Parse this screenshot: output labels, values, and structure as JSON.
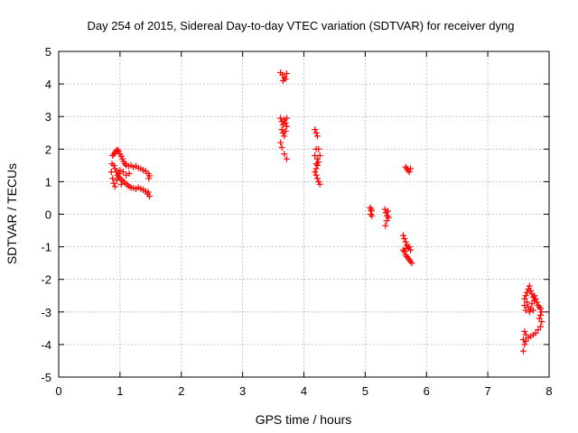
{
  "chart_data": {
    "type": "scatter",
    "title": "Day 254 of 2015, Sidereal Day-to-day VTEC variation (SDTVAR) for receiver dyng",
    "xlabel": "GPS time / hours",
    "ylabel": "SDTVAR / TECUs",
    "xlim": [
      0,
      8
    ],
    "ylim": [
      -5,
      5
    ],
    "xticks": [
      0,
      1,
      2,
      3,
      4,
      5,
      6,
      7,
      8
    ],
    "xtick_labels": [
      "0",
      "1",
      "2",
      "3",
      "4",
      "5",
      "6",
      "7",
      "8"
    ],
    "yticks": [
      -5,
      -4,
      -3,
      -2,
      -1,
      0,
      1,
      2,
      3,
      4,
      5
    ],
    "ytick_labels": [
      "-5",
      "-4",
      "-3",
      "-2",
      "-1",
      "0",
      "1",
      "2",
      "3",
      "4",
      "5"
    ],
    "grid": true,
    "marker": "+",
    "color": "#ff0000",
    "points": [
      [
        0.88,
        1.8
      ],
      [
        0.9,
        1.85
      ],
      [
        0.92,
        1.9
      ],
      [
        0.94,
        1.95
      ],
      [
        0.96,
        1.98
      ],
      [
        0.98,
        1.93
      ],
      [
        1.0,
        1.85
      ],
      [
        1.02,
        1.78
      ],
      [
        1.04,
        1.7
      ],
      [
        1.06,
        1.62
      ],
      [
        1.08,
        1.55
      ],
      [
        1.1,
        1.5
      ],
      [
        1.14,
        1.48
      ],
      [
        1.18,
        1.5
      ],
      [
        1.22,
        1.45
      ],
      [
        1.26,
        1.48
      ],
      [
        1.3,
        1.42
      ],
      [
        1.34,
        1.4
      ],
      [
        1.38,
        1.35
      ],
      [
        1.42,
        1.32
      ],
      [
        1.46,
        1.25
      ],
      [
        1.48,
        1.18
      ],
      [
        1.47,
        1.1
      ],
      [
        0.9,
        1.5
      ],
      [
        0.92,
        1.4
      ],
      [
        0.94,
        1.3
      ],
      [
        0.96,
        1.2
      ],
      [
        0.98,
        1.15
      ],
      [
        1.0,
        1.1
      ],
      [
        1.03,
        1.05
      ],
      [
        1.06,
        1.0
      ],
      [
        1.09,
        0.95
      ],
      [
        1.12,
        0.9
      ],
      [
        1.15,
        0.85
      ],
      [
        1.18,
        0.82
      ],
      [
        1.22,
        0.8
      ],
      [
        1.26,
        0.78
      ],
      [
        1.3,
        0.82
      ],
      [
        1.34,
        0.78
      ],
      [
        1.38,
        0.75
      ],
      [
        1.42,
        0.7
      ],
      [
        1.45,
        0.62
      ],
      [
        1.48,
        0.55
      ],
      [
        1.46,
        0.68
      ],
      [
        0.86,
        1.3
      ],
      [
        0.88,
        1.1
      ],
      [
        0.9,
        0.95
      ],
      [
        0.92,
        0.85
      ],
      [
        0.95,
        1.05
      ],
      [
        0.98,
        1.25
      ],
      [
        1.0,
        1.35
      ],
      [
        0.87,
        1.55
      ],
      [
        1.05,
        1.3
      ],
      [
        1.1,
        1.2
      ],
      [
        1.15,
        1.25
      ],
      [
        1.02,
        0.92
      ],
      [
        3.62,
        4.35
      ],
      [
        3.65,
        4.28
      ],
      [
        3.68,
        4.2
      ],
      [
        3.7,
        4.15
      ],
      [
        3.72,
        4.32
      ],
      [
        3.66,
        4.1
      ],
      [
        3.62,
        2.95
      ],
      [
        3.64,
        2.85
      ],
      [
        3.66,
        2.75
      ],
      [
        3.68,
        2.9
      ],
      [
        3.7,
        2.8
      ],
      [
        3.72,
        2.95
      ],
      [
        3.64,
        2.6
      ],
      [
        3.66,
        2.5
      ],
      [
        3.68,
        2.4
      ],
      [
        3.7,
        2.55
      ],
      [
        3.62,
        2.2
      ],
      [
        3.64,
        2.05
      ],
      [
        3.68,
        1.85
      ],
      [
        3.72,
        1.7
      ],
      [
        3.72,
        2.7
      ],
      [
        4.18,
        2.6
      ],
      [
        4.2,
        2.5
      ],
      [
        4.22,
        2.4
      ],
      [
        4.2,
        2.0
      ],
      [
        4.18,
        1.8
      ],
      [
        4.22,
        1.7
      ],
      [
        4.24,
        1.6
      ],
      [
        4.22,
        1.5
      ],
      [
        4.2,
        1.4
      ],
      [
        4.18,
        1.3
      ],
      [
        4.2,
        1.2
      ],
      [
        4.22,
        1.1
      ],
      [
        4.24,
        1.0
      ],
      [
        4.26,
        0.92
      ],
      [
        4.26,
        1.8
      ],
      [
        4.24,
        2.0
      ],
      [
        4.2,
        1.55
      ],
      [
        5.08,
        0.2
      ],
      [
        5.1,
        0.1
      ],
      [
        5.09,
        0.0
      ],
      [
        5.11,
        -0.05
      ],
      [
        5.1,
        0.15
      ],
      [
        5.32,
        0.15
      ],
      [
        5.34,
        0.05
      ],
      [
        5.36,
        -0.05
      ],
      [
        5.35,
        -0.2
      ],
      [
        5.33,
        -0.35
      ],
      [
        5.37,
        0.1
      ],
      [
        5.38,
        -0.1
      ],
      [
        5.66,
        1.45
      ],
      [
        5.68,
        1.4
      ],
      [
        5.7,
        1.35
      ],
      [
        5.74,
        1.4
      ],
      [
        5.72,
        1.3
      ],
      [
        5.62,
        -0.65
      ],
      [
        5.64,
        -0.75
      ],
      [
        5.66,
        -0.85
      ],
      [
        5.68,
        -0.95
      ],
      [
        5.7,
        -1.05
      ],
      [
        5.72,
        -1.0
      ],
      [
        5.74,
        -1.1
      ],
      [
        5.64,
        -1.15
      ],
      [
        5.66,
        -1.25
      ],
      [
        5.68,
        -1.3
      ],
      [
        5.7,
        -1.35
      ],
      [
        5.72,
        -1.4
      ],
      [
        5.74,
        -1.45
      ],
      [
        5.76,
        -1.5
      ],
      [
        5.62,
        -1.1
      ],
      [
        5.66,
        -1.05
      ],
      [
        7.6,
        -2.6
      ],
      [
        7.62,
        -2.5
      ],
      [
        7.64,
        -2.4
      ],
      [
        7.66,
        -2.3
      ],
      [
        7.68,
        -2.2
      ],
      [
        7.7,
        -2.35
      ],
      [
        7.72,
        -2.45
      ],
      [
        7.74,
        -2.55
      ],
      [
        7.76,
        -2.5
      ],
      [
        7.78,
        -2.6
      ],
      [
        7.8,
        -2.7
      ],
      [
        7.82,
        -2.8
      ],
      [
        7.84,
        -2.85
      ],
      [
        7.86,
        -2.9
      ],
      [
        7.88,
        -3.0
      ],
      [
        7.86,
        -3.1
      ],
      [
        7.84,
        -3.2
      ],
      [
        7.88,
        -3.3
      ],
      [
        7.86,
        -3.45
      ],
      [
        7.82,
        -3.55
      ],
      [
        7.78,
        -3.65
      ],
      [
        7.74,
        -3.7
      ],
      [
        7.7,
        -3.75
      ],
      [
        7.66,
        -3.8
      ],
      [
        7.62,
        -3.7
      ],
      [
        7.6,
        -3.6
      ],
      [
        7.58,
        -3.85
      ],
      [
        7.6,
        -4.0
      ],
      [
        7.58,
        -4.2
      ],
      [
        7.62,
        -3.9
      ],
      [
        7.6,
        -2.8
      ],
      [
        7.62,
        -2.95
      ],
      [
        7.64,
        -2.7
      ],
      [
        7.66,
        -2.85
      ],
      [
        7.68,
        -3.0
      ],
      [
        7.7,
        -2.9
      ],
      [
        7.72,
        -2.75
      ],
      [
        7.74,
        -2.95
      ],
      [
        7.76,
        -2.65
      ]
    ]
  }
}
